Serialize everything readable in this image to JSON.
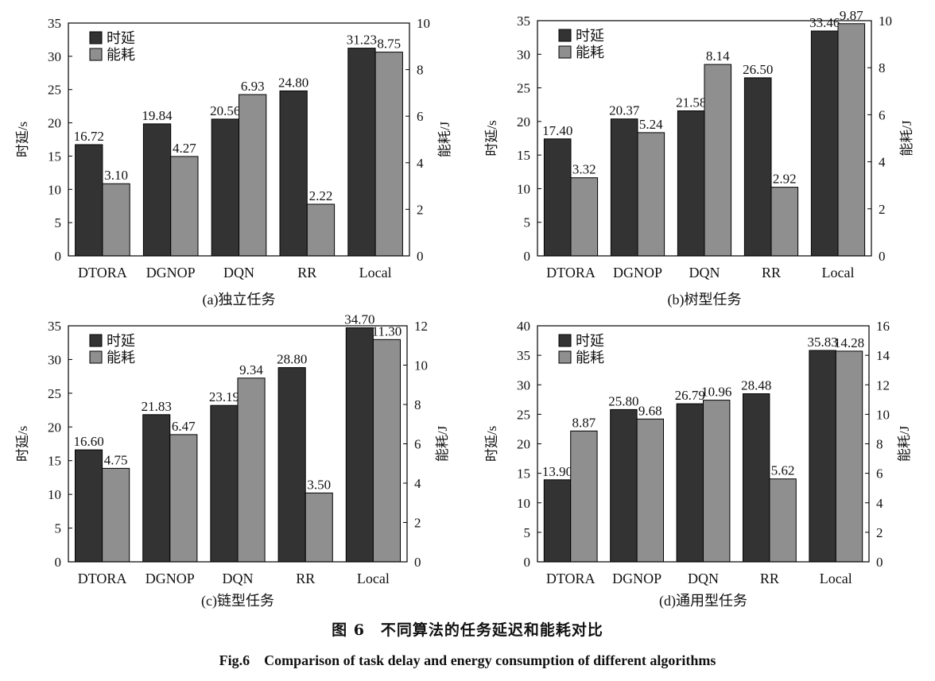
{
  "colors": {
    "delay": "#333333",
    "energy": "#8f8f8f",
    "axis": "#000000"
  },
  "chart_data": [
    {
      "type": "bar",
      "title": "(a)独立任务",
      "categories": [
        "DTORA",
        "DGNOP",
        "DQN",
        "RR",
        "Local"
      ],
      "ylabel": "时延/s",
      "y2label": "能耗/J",
      "ylim": [
        0,
        35
      ],
      "y2lim": [
        0,
        10
      ],
      "yticks": [
        0,
        5,
        10,
        15,
        20,
        25,
        30,
        35
      ],
      "y2ticks": [
        0,
        2,
        4,
        6,
        8,
        10
      ],
      "legend_position": "top-left",
      "series": [
        {
          "name": "时延",
          "axis": "left",
          "values": [
            16.72,
            19.84,
            20.56,
            24.8,
            31.23
          ],
          "labels": [
            "16.72",
            "19.84",
            "20.56",
            "24.80",
            "31.23"
          ]
        },
        {
          "name": "能耗",
          "axis": "right",
          "values": [
            3.1,
            4.27,
            6.93,
            2.22,
            8.75
          ],
          "labels": [
            "3.10",
            "4.27",
            "6.93",
            "2.22",
            "8.75"
          ]
        }
      ]
    },
    {
      "type": "bar",
      "title": "(b)树型任务",
      "categories": [
        "DTORA",
        "DGNOP",
        "DQN",
        "RR",
        "Local"
      ],
      "ylabel": "时延/s",
      "y2label": "能耗/J",
      "ylim": [
        0,
        35
      ],
      "y2lim": [
        0,
        10
      ],
      "yticks": [
        0,
        5,
        10,
        15,
        20,
        25,
        30,
        35
      ],
      "y2ticks": [
        0,
        2,
        4,
        6,
        8,
        10
      ],
      "legend_position": "top-left",
      "series": [
        {
          "name": "时延",
          "axis": "left",
          "values": [
            17.4,
            20.37,
            21.58,
            26.5,
            33.46
          ],
          "labels": [
            "17.40",
            "20.37",
            "21.58",
            "26.50",
            "33.46"
          ]
        },
        {
          "name": "能耗",
          "axis": "right",
          "values": [
            3.32,
            5.24,
            8.14,
            2.92,
            9.87
          ],
          "labels": [
            "3.32",
            "5.24",
            "8.14",
            "2.92",
            "9.87"
          ]
        }
      ]
    },
    {
      "type": "bar",
      "title": "(c)链型任务",
      "categories": [
        "DTORA",
        "DGNOP",
        "DQN",
        "RR",
        "Local"
      ],
      "ylabel": "时延/s",
      "y2label": "能耗/J",
      "ylim": [
        0,
        35
      ],
      "y2lim": [
        0,
        12
      ],
      "yticks": [
        0,
        5,
        10,
        15,
        20,
        25,
        30,
        35
      ],
      "y2ticks": [
        0,
        2,
        4,
        6,
        8,
        10,
        12
      ],
      "legend_position": "top-left",
      "series": [
        {
          "name": "时延",
          "axis": "left",
          "values": [
            16.6,
            21.83,
            23.19,
            28.8,
            34.7
          ],
          "labels": [
            "16.60",
            "21.83",
            "23.19",
            "28.80",
            "34.70"
          ]
        },
        {
          "name": "能耗",
          "axis": "right",
          "values": [
            4.75,
            6.47,
            9.34,
            3.5,
            11.3
          ],
          "labels": [
            "4.75",
            "6.47",
            "9.34",
            "3.50",
            "11.30"
          ]
        }
      ]
    },
    {
      "type": "bar",
      "title": "(d)通用型任务",
      "categories": [
        "DTORA",
        "DGNOP",
        "DQN",
        "RR",
        "Local"
      ],
      "ylabel": "时延/s",
      "y2label": "能耗/J",
      "ylim": [
        0,
        40
      ],
      "y2lim": [
        0,
        16
      ],
      "yticks": [
        0,
        5,
        10,
        15,
        20,
        25,
        30,
        35,
        40
      ],
      "y2ticks": [
        0,
        2,
        4,
        6,
        8,
        10,
        12,
        14,
        16
      ],
      "legend_position": "top-left",
      "series": [
        {
          "name": "时延",
          "axis": "left",
          "values": [
            13.9,
            25.8,
            26.79,
            28.48,
            35.83
          ],
          "labels": [
            "13.90",
            "25.80",
            "26.79",
            "28.48",
            "35.83"
          ]
        },
        {
          "name": "能耗",
          "axis": "right",
          "values": [
            8.87,
            9.68,
            10.96,
            5.62,
            14.28
          ],
          "labels": [
            "8.87",
            "9.68",
            "10.96",
            "5.62",
            "14.28"
          ]
        }
      ]
    }
  ],
  "captions": {
    "cn": "图 6　不同算法的任务延迟和能耗对比",
    "en": "Fig.6　Comparison of task delay and energy consumption of different algorithms"
  }
}
